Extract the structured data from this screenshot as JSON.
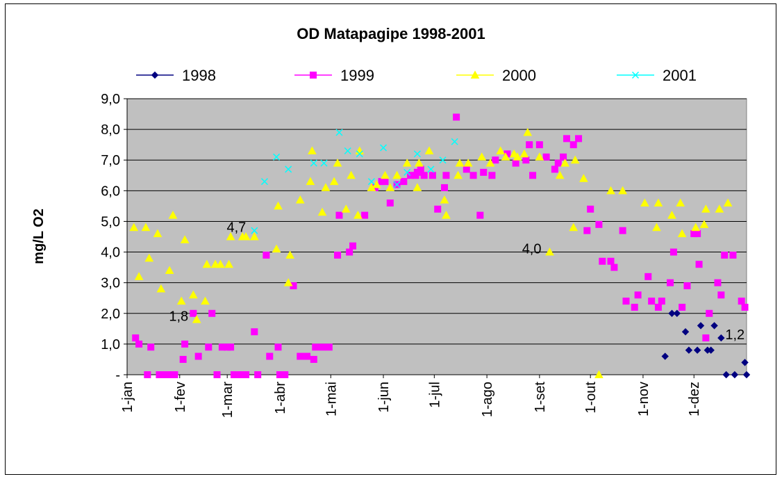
{
  "chart_data": {
    "type": "scatter",
    "title": "OD Matapagipe 1998-2001",
    "y_label": "mg/L O2",
    "legend": "top",
    "grid": true,
    "plot_background": "#c0c0c0",
    "xlim": [
      0,
      365
    ],
    "xticks": [
      {
        "value": 0,
        "label": "1-jan"
      },
      {
        "value": 31,
        "label": "1-fev"
      },
      {
        "value": 59,
        "label": "1-mar"
      },
      {
        "value": 90,
        "label": "1-abr"
      },
      {
        "value": 120,
        "label": "1-mai"
      },
      {
        "value": 151,
        "label": "1-jun"
      },
      {
        "value": 181,
        "label": "1-jul"
      },
      {
        "value": 212,
        "label": "1-ago"
      },
      {
        "value": 243,
        "label": "1-set"
      },
      {
        "value": 273,
        "label": "1-out"
      },
      {
        "value": 304,
        "label": "1-nov"
      },
      {
        "value": 334,
        "label": "1-dez"
      }
    ],
    "ylim": [
      0,
      9
    ],
    "yticks": [
      {
        "value": 0,
        "label": "-"
      },
      {
        "value": 1,
        "label": "1,0"
      },
      {
        "value": 2,
        "label": "2,0"
      },
      {
        "value": 3,
        "label": "3,0"
      },
      {
        "value": 4,
        "label": "4,0"
      },
      {
        "value": 5,
        "label": "5,0"
      },
      {
        "value": 6,
        "label": "6,0"
      },
      {
        "value": 7,
        "label": "7,0"
      },
      {
        "value": 8,
        "label": "8,0"
      },
      {
        "value": 9,
        "label": "9,0"
      }
    ],
    "series": [
      {
        "name": "1998",
        "color": "#000080",
        "marker": "diamond",
        "x": [
          317,
          321,
          324,
          329,
          331,
          336,
          338,
          342,
          344,
          346,
          350,
          353,
          358,
          364,
          365
        ],
        "values": [
          0.6,
          2.0,
          2.0,
          1.4,
          0.8,
          0.8,
          1.6,
          0.8,
          0.8,
          1.6,
          1.2,
          0,
          0,
          0.4,
          0
        ]
      },
      {
        "name": "1999",
        "color": "#ff00ff",
        "marker": "square",
        "x": [
          5,
          7,
          12,
          14,
          19,
          21,
          24,
          28,
          33,
          34,
          39,
          42,
          48,
          50,
          53,
          56,
          59,
          61,
          63,
          67,
          70,
          75,
          77,
          82,
          84,
          89,
          90,
          93,
          98,
          102,
          106,
          110,
          111,
          115,
          119,
          124,
          125,
          131,
          133,
          140,
          146,
          150,
          152,
          155,
          159,
          163,
          167,
          170,
          171,
          173,
          175,
          180,
          183,
          187,
          188,
          194,
          200,
          204,
          208,
          210,
          215,
          217,
          224,
          229,
          235,
          237,
          239,
          243,
          247,
          252,
          254,
          257,
          259,
          263,
          266,
          271,
          273,
          278,
          280,
          285,
          287,
          292,
          294,
          299,
          301,
          307,
          309,
          313,
          315,
          320,
          322,
          327,
          330,
          334,
          336,
          337,
          341,
          343,
          348,
          350,
          352,
          357,
          362,
          364
        ],
        "values": [
          1.2,
          1.0,
          0,
          0.9,
          0,
          0,
          0,
          0,
          0.5,
          1.0,
          2.0,
          0.6,
          0.9,
          2.0,
          0,
          0.9,
          0.9,
          0.9,
          0,
          0,
          0,
          1.4,
          0,
          3.9,
          0.6,
          0.9,
          0,
          0,
          2.9,
          0.6,
          0.6,
          0.5,
          0.9,
          0.9,
          0.9,
          3.9,
          5.2,
          4.0,
          4.2,
          5.2,
          6.1,
          6.3,
          6.3,
          5.6,
          6.2,
          6.3,
          6.5,
          6.5,
          6.6,
          6.7,
          6.5,
          6.5,
          5.4,
          6.1,
          6.5,
          8.4,
          6.7,
          6.5,
          5.2,
          6.6,
          6.5,
          7.0,
          7.2,
          6.9,
          7.0,
          7.5,
          6.5,
          7.5,
          7.1,
          6.7,
          6.9,
          7.1,
          7.7,
          7.5,
          7.7,
          4.7,
          5.4,
          4.9,
          3.7,
          3.7,
          3.5,
          4.7,
          2.4,
          2.2,
          2.6,
          3.2,
          2.4,
          2.2,
          2.4,
          3.0,
          4.0,
          2.2,
          2.9,
          4.6,
          4.6,
          3.6,
          1.2,
          2.0,
          3.0,
          2.6,
          3.9,
          3.9,
          2.4,
          2.2
        ]
      },
      {
        "name": "2000",
        "color": "#ffff00",
        "marker": "triangle",
        "x": [
          4,
          7,
          11,
          13,
          18,
          20,
          25,
          27,
          32,
          34,
          39,
          41,
          46,
          47,
          52,
          55,
          60,
          61,
          68,
          70,
          75,
          88,
          89,
          95,
          96,
          102,
          108,
          109,
          115,
          117,
          122,
          124,
          129,
          132,
          136,
          137,
          144,
          147,
          152,
          155,
          159,
          165,
          171,
          172,
          178,
          187,
          188,
          195,
          196,
          201,
          209,
          214,
          220,
          223,
          228,
          230,
          234,
          236,
          243,
          249,
          255,
          258,
          263,
          264,
          269,
          278,
          285,
          292,
          305,
          312,
          313,
          321,
          326,
          327,
          335,
          340,
          341,
          349,
          354
        ],
        "values": [
          4.8,
          3.2,
          4.8,
          3.8,
          4.6,
          2.8,
          3.4,
          5.2,
          2.4,
          4.4,
          2.6,
          1.8,
          2.4,
          3.6,
          3.6,
          3.6,
          3.6,
          4.5,
          4.5,
          4.5,
          4.5,
          4.1,
          5.5,
          3.0,
          3.9,
          5.7,
          6.3,
          7.3,
          5.3,
          6.1,
          6.3,
          6.9,
          5.4,
          6.5,
          5.2,
          7.3,
          6.1,
          6.2,
          6.5,
          6.1,
          6.5,
          6.9,
          6.1,
          6.9,
          7.3,
          5.7,
          5.2,
          6.5,
          6.9,
          6.9,
          7.1,
          6.9,
          7.3,
          7.1,
          7.2,
          7.1,
          7.2,
          7.9,
          7.1,
          4.0,
          6.5,
          6.9,
          4.8,
          7.0,
          6.4,
          0,
          6.0,
          6.0,
          5.6,
          4.8,
          5.6,
          5.2,
          5.6,
          4.6,
          4.8,
          4.9,
          5.4,
          5.4,
          5.6
        ]
      },
      {
        "name": "2001",
        "color": "#00ffff",
        "marker": "x",
        "x": [
          75,
          81,
          88,
          95,
          110,
          116,
          125,
          130,
          137,
          144,
          151,
          159,
          165,
          171,
          179,
          186,
          193
        ],
        "values": [
          4.7,
          6.3,
          7.1,
          6.7,
          6.9,
          6.9,
          7.9,
          7.3,
          7.2,
          6.3,
          7.4,
          6.2,
          6.6,
          7.2,
          6.7,
          7.0,
          7.6
        ]
      }
    ],
    "annotations": [
      {
        "text": "4,7",
        "x": 75,
        "y": 4.7
      },
      {
        "text": "1,8",
        "x": 41,
        "y": 1.8
      },
      {
        "text": "4,0",
        "x": 249,
        "y": 4.0
      },
      {
        "text": "1,2",
        "x": 350,
        "y": 1.2
      }
    ]
  }
}
